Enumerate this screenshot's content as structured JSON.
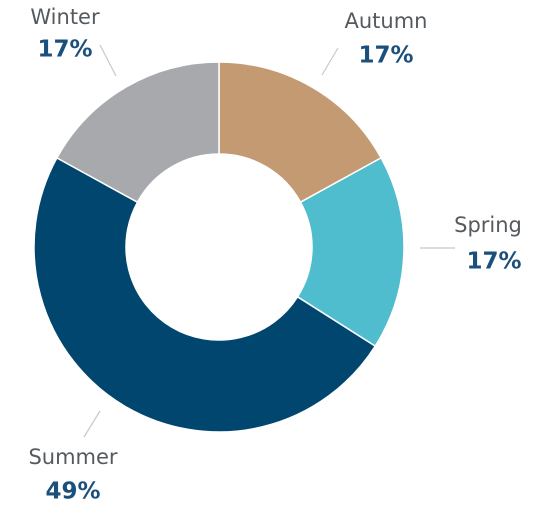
{
  "chart_data": {
    "type": "donut",
    "categories": [
      "Autumn",
      "Spring",
      "Summer",
      "Winter"
    ],
    "values": [
      17,
      17,
      49,
      17
    ],
    "value_labels": [
      "17%",
      "17%",
      "49%",
      "17%"
    ],
    "colors": [
      "#c49a72",
      "#4fbdce",
      "#00466e",
      "#a7a9ad"
    ]
  }
}
